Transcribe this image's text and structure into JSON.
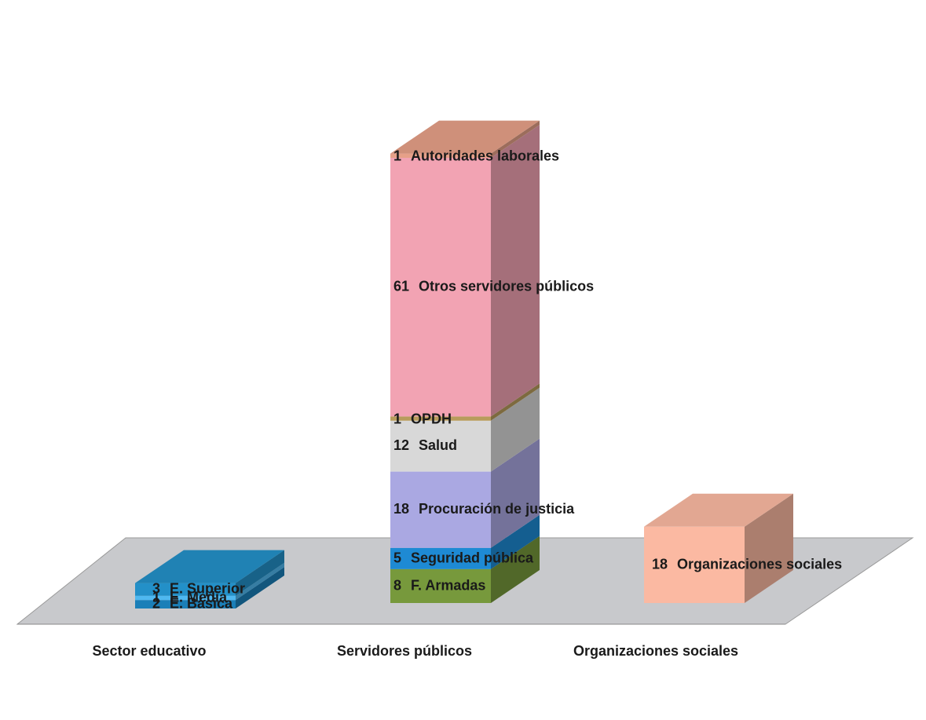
{
  "chart_data": {
    "type": "bar",
    "stacked": true,
    "categories": [
      "Sector educativo",
      "Servidores públicos",
      "Organizaciones sociales"
    ],
    "series": [
      {
        "name": "E. Básica",
        "color": "#1b7fb8",
        "values": [
          2,
          null,
          null
        ]
      },
      {
        "name": "E. Media",
        "color": "#4fb8f0",
        "values": [
          1,
          null,
          null
        ]
      },
      {
        "name": "E. Superior",
        "color": "#2390c8",
        "values": [
          3,
          null,
          null
        ]
      },
      {
        "name": "F. Armadas",
        "color": "#77993c",
        "values": [
          null,
          8,
          null
        ]
      },
      {
        "name": "Seguridad pública",
        "color": "#1e8ad4",
        "values": [
          null,
          5,
          null
        ]
      },
      {
        "name": "Procuración de justicia",
        "color": "#aaa8e2",
        "values": [
          null,
          18,
          null
        ]
      },
      {
        "name": "Salud",
        "color": "#d8d8d8",
        "values": [
          null,
          12,
          null
        ]
      },
      {
        "name": "OPDH",
        "color": "#b89c5c",
        "values": [
          null,
          1,
          null
        ]
      },
      {
        "name": "Otros servidores públicos",
        "color": "#f2a3b3",
        "values": [
          null,
          61,
          null
        ]
      },
      {
        "name": "Autoridades laborales",
        "color": "#e6a088",
        "values": [
          null,
          1,
          null
        ]
      },
      {
        "name": "Organizaciones sociales",
        "color": "#fbb9a2",
        "values": [
          null,
          null,
          18
        ]
      }
    ]
  }
}
